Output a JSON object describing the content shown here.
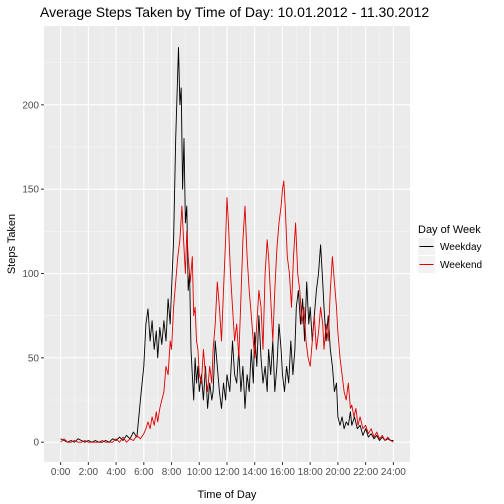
{
  "chart_data": {
    "type": "line",
    "title": "Average Steps Taken by Time of Day: 10.01.2012 - 11.30.2012",
    "xlabel": "Time of Day",
    "ylabel": "Steps Taken",
    "xlim": [
      0,
      24
    ],
    "ylim": [
      0,
      235
    ],
    "x_ticks": [
      {
        "value": 0,
        "label": "0:00"
      },
      {
        "value": 2,
        "label": "2:00"
      },
      {
        "value": 4,
        "label": "4:00"
      },
      {
        "value": 6,
        "label": "6:00"
      },
      {
        "value": 8,
        "label": "8:00"
      },
      {
        "value": 10,
        "label": "10:00"
      },
      {
        "value": 12,
        "label": "12:00"
      },
      {
        "value": 14,
        "label": "14:00"
      },
      {
        "value": 16,
        "label": "16:00"
      },
      {
        "value": 18,
        "label": "18:00"
      },
      {
        "value": 20,
        "label": "20:00"
      },
      {
        "value": 22,
        "label": "22:00"
      },
      {
        "value": 24,
        "label": "24:00"
      }
    ],
    "y_ticks": [
      0,
      50,
      100,
      150,
      200
    ],
    "grid": true,
    "legend": {
      "title": "Day of Week",
      "position": "right"
    },
    "series": [
      {
        "name": "Weekday",
        "color": "#000000",
        "points": [
          [
            0,
            2
          ],
          [
            0.25,
            1
          ],
          [
            0.5,
            0
          ],
          [
            0.75,
            1
          ],
          [
            1,
            0
          ],
          [
            1.25,
            2
          ],
          [
            1.5,
            1
          ],
          [
            1.75,
            0
          ],
          [
            2,
            1
          ],
          [
            2.25,
            0
          ],
          [
            2.5,
            1
          ],
          [
            2.75,
            0
          ],
          [
            3,
            0
          ],
          [
            3.25,
            1
          ],
          [
            3.5,
            0
          ],
          [
            3.75,
            2
          ],
          [
            4,
            1
          ],
          [
            4.25,
            3
          ],
          [
            4.5,
            1
          ],
          [
            4.75,
            4
          ],
          [
            5,
            2
          ],
          [
            5.25,
            6
          ],
          [
            5.5,
            3
          ],
          [
            5.75,
            25
          ],
          [
            6,
            45
          ],
          [
            6.15,
            70
          ],
          [
            6.3,
            79
          ],
          [
            6.45,
            60
          ],
          [
            6.6,
            72
          ],
          [
            6.75,
            55
          ],
          [
            6.9,
            66
          ],
          [
            7,
            50
          ],
          [
            7.15,
            68
          ],
          [
            7.3,
            58
          ],
          [
            7.45,
            72
          ],
          [
            7.6,
            60
          ],
          [
            7.75,
            85
          ],
          [
            7.9,
            70
          ],
          [
            8,
            90
          ],
          [
            8.15,
            120
          ],
          [
            8.3,
            180
          ],
          [
            8.5,
            234
          ],
          [
            8.6,
            200
          ],
          [
            8.7,
            210
          ],
          [
            8.8,
            150
          ],
          [
            8.9,
            180
          ],
          [
            9,
            130
          ],
          [
            9.1,
            140
          ],
          [
            9.2,
            90
          ],
          [
            9.3,
            100
          ],
          [
            9.4,
            55
          ],
          [
            9.5,
            40
          ],
          [
            9.6,
            25
          ],
          [
            9.7,
            50
          ],
          [
            9.8,
            35
          ],
          [
            9.9,
            45
          ],
          [
            10,
            30
          ],
          [
            10.15,
            40
          ],
          [
            10.3,
            25
          ],
          [
            10.45,
            45
          ],
          [
            10.6,
            20
          ],
          [
            10.75,
            35
          ],
          [
            10.9,
            25
          ],
          [
            11,
            30
          ],
          [
            11.15,
            60
          ],
          [
            11.3,
            45
          ],
          [
            11.45,
            30
          ],
          [
            11.6,
            20
          ],
          [
            11.75,
            35
          ],
          [
            11.9,
            25
          ],
          [
            12,
            40
          ],
          [
            12.2,
            30
          ],
          [
            12.4,
            60
          ],
          [
            12.55,
            40
          ],
          [
            12.7,
            35
          ],
          [
            12.85,
            55
          ],
          [
            13,
            30
          ],
          [
            13.15,
            45
          ],
          [
            13.3,
            20
          ],
          [
            13.45,
            40
          ],
          [
            13.6,
            30
          ],
          [
            13.75,
            55
          ],
          [
            13.9,
            35
          ],
          [
            14,
            65
          ],
          [
            14.15,
            45
          ],
          [
            14.3,
            75
          ],
          [
            14.45,
            50
          ],
          [
            14.6,
            35
          ],
          [
            14.75,
            45
          ],
          [
            14.9,
            30
          ],
          [
            15,
            55
          ],
          [
            15.15,
            40
          ],
          [
            15.3,
            60
          ],
          [
            15.45,
            30
          ],
          [
            15.6,
            45
          ],
          [
            15.75,
            70
          ],
          [
            15.9,
            55
          ],
          [
            16,
            40
          ],
          [
            16.15,
            30
          ],
          [
            16.3,
            45
          ],
          [
            16.45,
            35
          ],
          [
            16.6,
            60
          ],
          [
            16.75,
            40
          ],
          [
            16.9,
            55
          ],
          [
            17,
            80
          ],
          [
            17.15,
            90
          ],
          [
            17.3,
            70
          ],
          [
            17.45,
            85
          ],
          [
            17.6,
            60
          ],
          [
            17.75,
            95
          ],
          [
            17.9,
            70
          ],
          [
            18,
            80
          ],
          [
            18.15,
            60
          ],
          [
            18.3,
            75
          ],
          [
            18.45,
            90
          ],
          [
            18.6,
            100
          ],
          [
            18.75,
            117
          ],
          [
            18.9,
            95
          ],
          [
            19,
            80
          ],
          [
            19.15,
            60
          ],
          [
            19.3,
            75
          ],
          [
            19.45,
            55
          ],
          [
            19.6,
            45
          ],
          [
            19.75,
            30
          ],
          [
            19.9,
            35
          ],
          [
            20,
            15
          ],
          [
            20.15,
            10
          ],
          [
            20.3,
            15
          ],
          [
            20.45,
            8
          ],
          [
            20.6,
            12
          ],
          [
            20.75,
            10
          ],
          [
            20.9,
            18
          ],
          [
            21,
            10
          ],
          [
            21.2,
            15
          ],
          [
            21.4,
            8
          ],
          [
            21.6,
            10
          ],
          [
            21.8,
            4
          ],
          [
            22,
            8
          ],
          [
            22.2,
            3
          ],
          [
            22.4,
            5
          ],
          [
            22.6,
            2
          ],
          [
            22.8,
            4
          ],
          [
            23,
            1
          ],
          [
            23.2,
            3
          ],
          [
            23.4,
            1
          ],
          [
            23.6,
            2
          ],
          [
            23.8,
            1
          ],
          [
            24,
            1
          ]
        ]
      },
      {
        "name": "Weekend",
        "color": "#e00000",
        "points": [
          [
            0,
            0
          ],
          [
            0.25,
            2
          ],
          [
            0.5,
            0
          ],
          [
            0.75,
            0
          ],
          [
            1,
            1
          ],
          [
            1.25,
            0
          ],
          [
            1.5,
            0
          ],
          [
            1.75,
            1
          ],
          [
            2,
            0
          ],
          [
            2.25,
            0
          ],
          [
            2.5,
            0
          ],
          [
            2.75,
            0
          ],
          [
            3,
            1
          ],
          [
            3.25,
            0
          ],
          [
            3.5,
            0
          ],
          [
            3.75,
            0
          ],
          [
            4,
            2
          ],
          [
            4.25,
            0
          ],
          [
            4.5,
            3
          ],
          [
            4.75,
            0
          ],
          [
            5,
            2
          ],
          [
            5.25,
            1
          ],
          [
            5.5,
            4
          ],
          [
            5.75,
            2
          ],
          [
            6,
            5
          ],
          [
            6.15,
            8
          ],
          [
            6.3,
            12
          ],
          [
            6.45,
            8
          ],
          [
            6.6,
            15
          ],
          [
            6.75,
            10
          ],
          [
            6.9,
            18
          ],
          [
            7,
            12
          ],
          [
            7.15,
            20
          ],
          [
            7.3,
            25
          ],
          [
            7.45,
            30
          ],
          [
            7.6,
            45
          ],
          [
            7.75,
            40
          ],
          [
            7.9,
            60
          ],
          [
            8,
            55
          ],
          [
            8.15,
            80
          ],
          [
            8.3,
            95
          ],
          [
            8.45,
            110
          ],
          [
            8.6,
            120
          ],
          [
            8.75,
            140
          ],
          [
            8.9,
            115
          ],
          [
            9,
            100
          ],
          [
            9.1,
            125
          ],
          [
            9.2,
            110
          ],
          [
            9.35,
            95
          ],
          [
            9.5,
            110
          ],
          [
            9.6,
            75
          ],
          [
            9.7,
            80
          ],
          [
            9.8,
            60
          ],
          [
            9.9,
            55
          ],
          [
            10,
            40
          ],
          [
            10.15,
            35
          ],
          [
            10.3,
            55
          ],
          [
            10.45,
            40
          ],
          [
            10.6,
            30
          ],
          [
            10.75,
            45
          ],
          [
            10.9,
            35
          ],
          [
            11,
            55
          ],
          [
            11.15,
            70
          ],
          [
            11.3,
            95
          ],
          [
            11.45,
            80
          ],
          [
            11.6,
            60
          ],
          [
            11.75,
            90
          ],
          [
            11.9,
            120
          ],
          [
            12,
            145
          ],
          [
            12.1,
            130
          ],
          [
            12.25,
            100
          ],
          [
            12.4,
            80
          ],
          [
            12.55,
            60
          ],
          [
            12.7,
            70
          ],
          [
            12.85,
            50
          ],
          [
            13,
            85
          ],
          [
            13.15,
            120
          ],
          [
            13.3,
            140
          ],
          [
            13.45,
            110
          ],
          [
            13.6,
            90
          ],
          [
            13.75,
            75
          ],
          [
            13.9,
            60
          ],
          [
            14,
            50
          ],
          [
            14.15,
            70
          ],
          [
            14.3,
            90
          ],
          [
            14.45,
            80
          ],
          [
            14.6,
            55
          ],
          [
            14.75,
            100
          ],
          [
            14.9,
            120
          ],
          [
            15,
            110
          ],
          [
            15.15,
            85
          ],
          [
            15.3,
            60
          ],
          [
            15.45,
            90
          ],
          [
            15.6,
            115
          ],
          [
            15.75,
            130
          ],
          [
            15.9,
            140
          ],
          [
            16,
            150
          ],
          [
            16.1,
            155
          ],
          [
            16.2,
            140
          ],
          [
            16.35,
            110
          ],
          [
            16.5,
            100
          ],
          [
            16.65,
            80
          ],
          [
            16.8,
            110
          ],
          [
            16.95,
            130
          ],
          [
            17.1,
            100
          ],
          [
            17.25,
            90
          ],
          [
            17.4,
            70
          ],
          [
            17.55,
            80
          ],
          [
            17.7,
            60
          ],
          [
            17.85,
            50
          ],
          [
            18,
            45
          ],
          [
            18.15,
            60
          ],
          [
            18.3,
            75
          ],
          [
            18.45,
            55
          ],
          [
            18.6,
            65
          ],
          [
            18.75,
            80
          ],
          [
            18.9,
            70
          ],
          [
            19,
            55
          ],
          [
            19.15,
            70
          ],
          [
            19.3,
            60
          ],
          [
            19.45,
            90
          ],
          [
            19.6,
            110
          ],
          [
            19.75,
            95
          ],
          [
            19.9,
            80
          ],
          [
            20,
            65
          ],
          [
            20.15,
            50
          ],
          [
            20.3,
            40
          ],
          [
            20.45,
            30
          ],
          [
            20.6,
            25
          ],
          [
            20.75,
            35
          ],
          [
            20.9,
            20
          ],
          [
            21,
            22
          ],
          [
            21.15,
            15
          ],
          [
            21.3,
            20
          ],
          [
            21.45,
            10
          ],
          [
            21.6,
            15
          ],
          [
            21.8,
            8
          ],
          [
            22,
            10
          ],
          [
            22.2,
            5
          ],
          [
            22.4,
            8
          ],
          [
            22.6,
            3
          ],
          [
            22.8,
            6
          ],
          [
            23,
            2
          ],
          [
            23.2,
            4
          ],
          [
            23.4,
            1
          ],
          [
            23.6,
            3
          ],
          [
            23.8,
            1
          ],
          [
            24,
            0
          ]
        ]
      }
    ]
  }
}
